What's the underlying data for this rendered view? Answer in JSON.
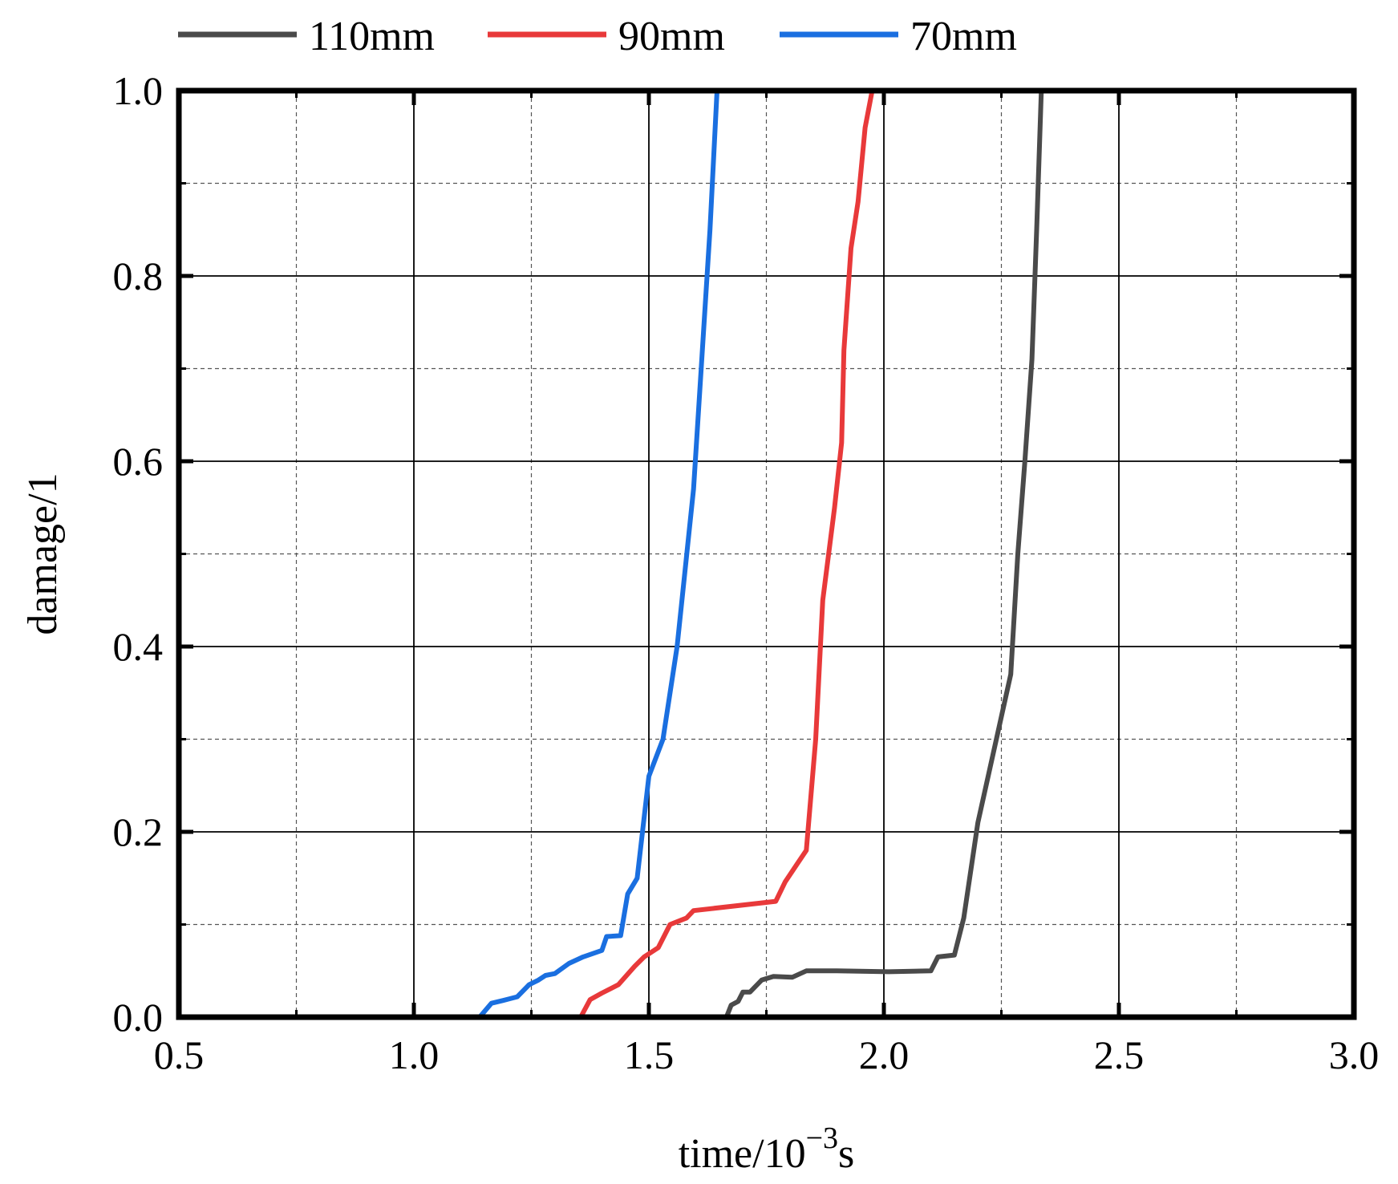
{
  "chart_data": {
    "type": "line",
    "xlabel_main": "time/10",
    "xlabel_sup": "−3",
    "xlabel_unit": "s",
    "ylabel": "damage/1",
    "xlim": [
      0.5,
      3.0
    ],
    "ylim": [
      0.0,
      1.0
    ],
    "x_ticks": [
      "0.5",
      "1.0",
      "1.5",
      "2.0",
      "2.5",
      "3.0"
    ],
    "y_ticks": [
      "0.0",
      "0.2",
      "0.4",
      "0.6",
      "0.8",
      "1.0"
    ],
    "grid": true,
    "legend_position": "top",
    "series": [
      {
        "name": "110mm",
        "color": "#4a4a4a",
        "points": [
          [
            1.665,
            0.0
          ],
          [
            1.675,
            0.013
          ],
          [
            1.69,
            0.017
          ],
          [
            1.7,
            0.027
          ],
          [
            1.715,
            0.027
          ],
          [
            1.74,
            0.04
          ],
          [
            1.765,
            0.044
          ],
          [
            1.805,
            0.043
          ],
          [
            1.835,
            0.05
          ],
          [
            1.9,
            0.05
          ],
          [
            2.01,
            0.049
          ],
          [
            2.1,
            0.05
          ],
          [
            2.115,
            0.065
          ],
          [
            2.15,
            0.067
          ],
          [
            2.17,
            0.107
          ],
          [
            2.2,
            0.21
          ],
          [
            2.27,
            0.37
          ],
          [
            2.285,
            0.5
          ],
          [
            2.3,
            0.6
          ],
          [
            2.315,
            0.71
          ],
          [
            2.325,
            0.85
          ],
          [
            2.335,
            1.0
          ]
        ]
      },
      {
        "name": "90mm",
        "color": "#e8393a",
        "points": [
          [
            1.355,
            0.0
          ],
          [
            1.375,
            0.019
          ],
          [
            1.4,
            0.026
          ],
          [
            1.435,
            0.035
          ],
          [
            1.47,
            0.055
          ],
          [
            1.49,
            0.065
          ],
          [
            1.52,
            0.075
          ],
          [
            1.545,
            0.1
          ],
          [
            1.58,
            0.107
          ],
          [
            1.595,
            0.115
          ],
          [
            1.77,
            0.125
          ],
          [
            1.79,
            0.146
          ],
          [
            1.815,
            0.165
          ],
          [
            1.835,
            0.18
          ],
          [
            1.855,
            0.3
          ],
          [
            1.87,
            0.45
          ],
          [
            1.895,
            0.55
          ],
          [
            1.91,
            0.62
          ],
          [
            1.915,
            0.72
          ],
          [
            1.93,
            0.83
          ],
          [
            1.945,
            0.88
          ],
          [
            1.96,
            0.96
          ],
          [
            1.975,
            1.0
          ]
        ]
      },
      {
        "name": "70mm",
        "color": "#1a6fe0",
        "points": [
          [
            1.14,
            0.0
          ],
          [
            1.165,
            0.015
          ],
          [
            1.19,
            0.018
          ],
          [
            1.22,
            0.022
          ],
          [
            1.245,
            0.035
          ],
          [
            1.265,
            0.04
          ],
          [
            1.28,
            0.045
          ],
          [
            1.3,
            0.047
          ],
          [
            1.33,
            0.058
          ],
          [
            1.36,
            0.065
          ],
          [
            1.4,
            0.072
          ],
          [
            1.41,
            0.087
          ],
          [
            1.44,
            0.088
          ],
          [
            1.455,
            0.133
          ],
          [
            1.475,
            0.15
          ],
          [
            1.5,
            0.26
          ],
          [
            1.53,
            0.3
          ],
          [
            1.56,
            0.4
          ],
          [
            1.595,
            0.57
          ],
          [
            1.61,
            0.69
          ],
          [
            1.63,
            0.85
          ],
          [
            1.645,
            1.0
          ]
        ]
      }
    ]
  }
}
